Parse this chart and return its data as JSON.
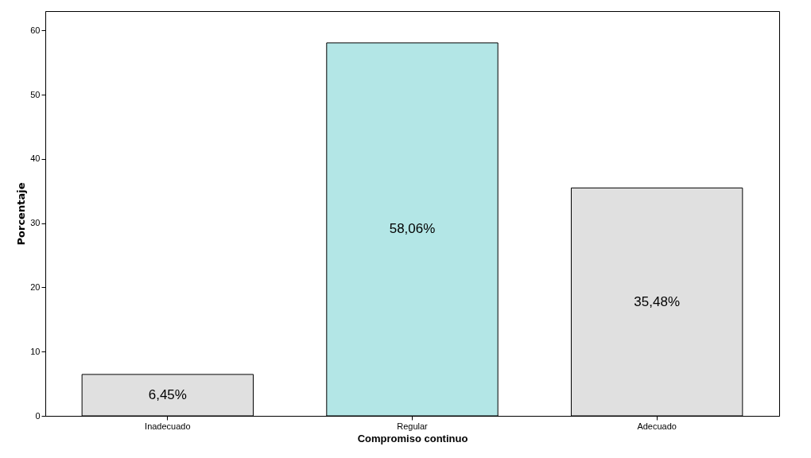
{
  "chart_data": {
    "type": "bar",
    "xlabel": "Compromiso continuo",
    "ylabel": "Porcentaje",
    "categories": [
      "Inadecuado",
      "Regular",
      "Adecuado"
    ],
    "values": [
      6.45,
      58.06,
      35.48
    ],
    "colors": [
      "#e0e0e0",
      "#b3e6e6",
      "#e0e0e0"
    ],
    "value_labels": [
      "6,45%",
      "58,06%",
      "35,48%"
    ],
    "ylim": [
      0,
      63
    ],
    "yticks": [
      0,
      10,
      20,
      30,
      40,
      50,
      60
    ],
    "grid": false
  }
}
